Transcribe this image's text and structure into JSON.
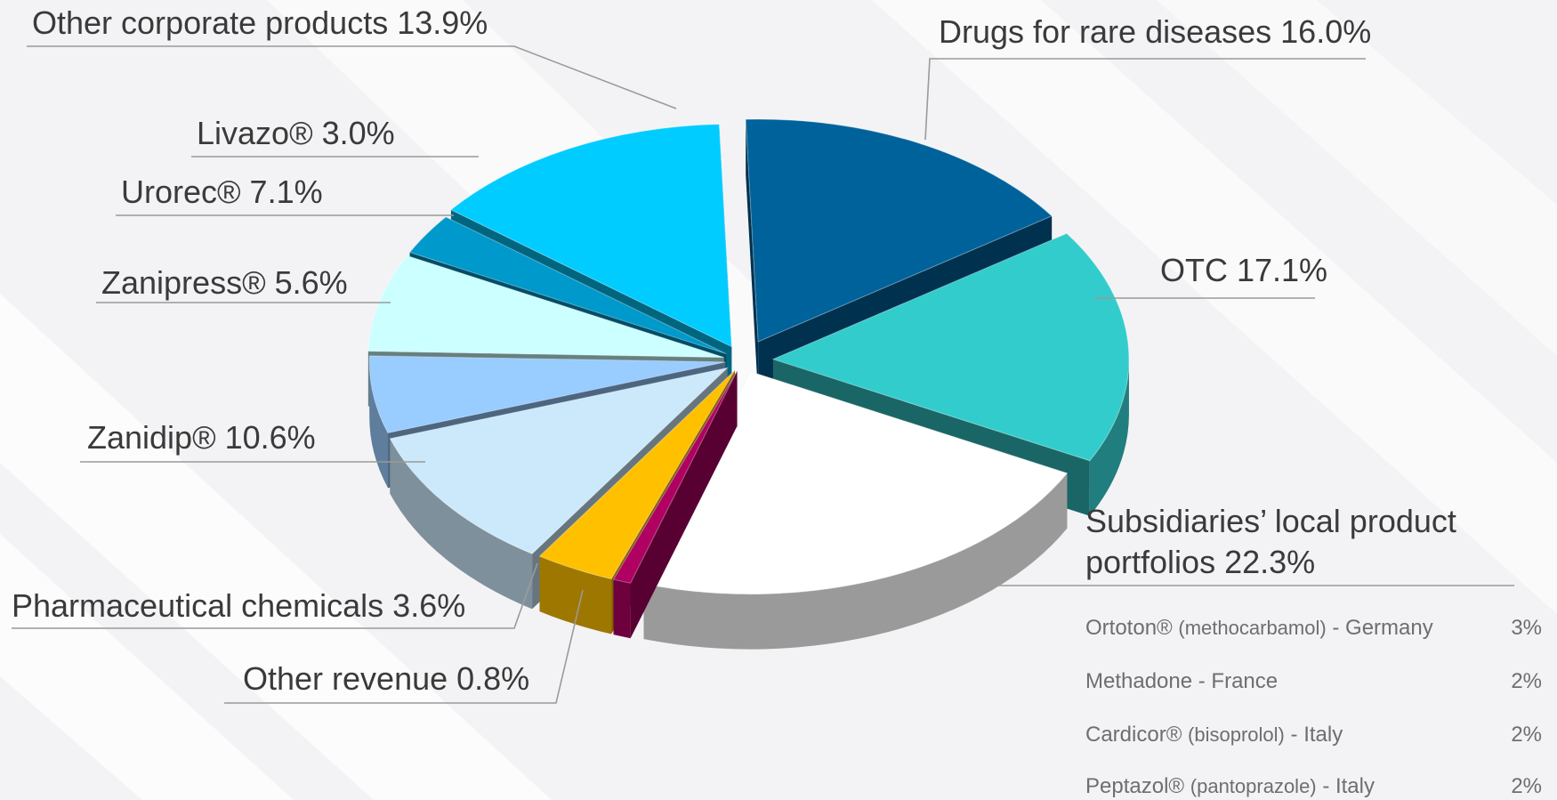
{
  "chart_data": {
    "type": "pie",
    "title": "",
    "slices": [
      {
        "label": "Drugs for rare diseases",
        "value": 16.0,
        "display": "Drugs for rare diseases 16.0%",
        "color": "#00629b"
      },
      {
        "label": "OTC",
        "value": 17.1,
        "display": "OTC 17.1%",
        "color": "#33cccc"
      },
      {
        "label": "Subsidiaries’ local product portfolios",
        "value": 22.3,
        "display_line1": "Subsidiaries’ local product",
        "display_line2": "portfolios  22.3%",
        "color": "#ffffff"
      },
      {
        "label": "Other revenue",
        "value": 0.8,
        "display": "Other revenue 0.8%",
        "color": "#b00062"
      },
      {
        "label": "Pharmaceutical chemicals",
        "value": 3.6,
        "display": "Pharmaceutical chemicals  3.6%",
        "color": "#ffc000"
      },
      {
        "label": "Zanidip®",
        "value": 10.6,
        "display": "Zanidip® 10.6%",
        "color": "#cce9fb"
      },
      {
        "label": "Zanipress®",
        "value": 5.6,
        "display": "Zanipress® 5.6%",
        "color": "#99ccff"
      },
      {
        "label": "Urorec®",
        "value": 7.1,
        "display": "Urorec® 7.1%",
        "color": "#ccffff"
      },
      {
        "label": "Livazo®",
        "value": 3.0,
        "display": "Livazo® 3.0%",
        "color": "#0099cc"
      },
      {
        "label": "Other corporate products",
        "value": 13.9,
        "display": "Other corporate products 13.9%",
        "color": "#00ccff"
      }
    ],
    "subsidiary_breakdown": [
      {
        "name": "Ortoton®",
        "qualifier": "(methocarbamol)",
        "country": "- Germany",
        "value": "3%"
      },
      {
        "name": "Methadone",
        "qualifier": "",
        "country": "- France",
        "value": "2%"
      },
      {
        "name": "Cardicor®",
        "qualifier": "(bisoprolol)",
        "country": "- Italy",
        "value": "2%"
      },
      {
        "name": "Peptazol®",
        "qualifier": "(pantoprazole)",
        "country": "- Italy",
        "value": "2%"
      }
    ]
  }
}
